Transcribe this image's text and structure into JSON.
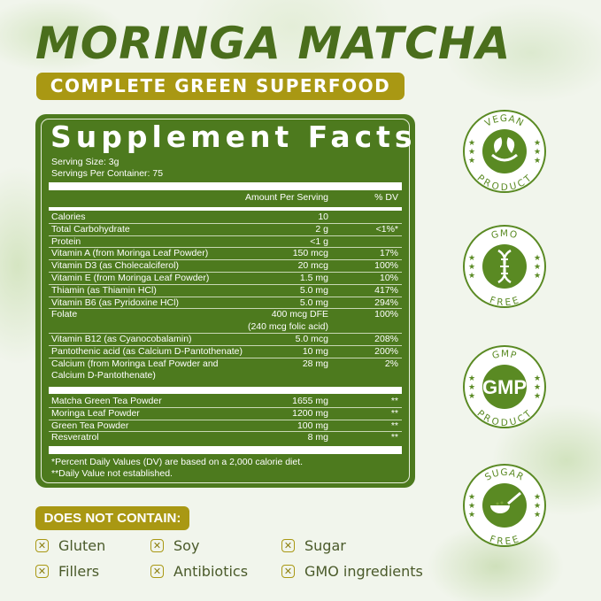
{
  "title": "MORINGA MATCHA",
  "subtitle": "COMPLETE GREEN SUPERFOOD",
  "facts": {
    "heading": "Supplement Facts",
    "serving_size": "Serving Size: 3g",
    "servings_per_container": "Servings Per Container: 75",
    "col_amount": "Amount Per Serving",
    "col_dv": "% DV",
    "nutrients": [
      {
        "name": "Calories",
        "amount": "10",
        "dv": ""
      },
      {
        "name": "Total Carbohydrate",
        "amount": "2 g",
        "dv": "<1%*"
      },
      {
        "name": "Protein",
        "amount": "<1 g",
        "dv": ""
      },
      {
        "name": "Vitamin A (from Moringa Leaf Powder)",
        "amount": "150 mcg",
        "dv": "17%"
      },
      {
        "name": "Vitamin D3 (as Cholecalciferol)",
        "amount": "20 mcg",
        "dv": "100%"
      },
      {
        "name": "Vitamin E (from Moringa Leaf Powder)",
        "amount": "1.5 mg",
        "dv": "10%"
      },
      {
        "name": "Thiamin (as Thiamin HCl)",
        "amount": "5.0 mg",
        "dv": "417%"
      },
      {
        "name": "Vitamin B6 (as Pyridoxine HCl)",
        "amount": "5.0 mg",
        "dv": "294%"
      },
      {
        "name": "Folate",
        "amount": "400 mcg DFE",
        "amount2": "(240 mcg folic acid)",
        "dv": "100%"
      },
      {
        "name": "Vitamin B12 (as Cyanocobalamin)",
        "amount": "5.0 mcg",
        "dv": "208%"
      },
      {
        "name": "Pantothenic acid (as Calcium D-Pantothenate)",
        "amount": "10 mg",
        "dv": "200%"
      },
      {
        "name": "Calcium (from Moringa Leaf Powder and",
        "name2": "Calcium D-Pantothenate)",
        "amount": "28 mg",
        "dv": "2%"
      }
    ],
    "ingredients": [
      {
        "name": "Matcha Green Tea Powder",
        "amount": "1655 mg",
        "dv": "**"
      },
      {
        "name": "Moringa Leaf Powder",
        "amount": "1200 mg",
        "dv": "**"
      },
      {
        "name": "Green Tea Powder",
        "amount": "100 mg",
        "dv": "**"
      },
      {
        "name": "Resveratrol",
        "amount": "8 mg",
        "dv": "**"
      }
    ],
    "footnote1": "*Percent Daily Values (DV) are based on a 2,000 calorie diet.",
    "footnote2": "**Daily Value not established."
  },
  "badges": [
    {
      "top": "VEGAN",
      "bottom": "PRODUCT",
      "icon": "leaf-bowl-icon"
    },
    {
      "top": "GMO",
      "bottom": "FREE",
      "icon": "dna-icon"
    },
    {
      "top": "GMP",
      "bottom": "PRODUCT",
      "icon": "gmp-text-icon",
      "center": "GMP"
    },
    {
      "top": "SUGAR",
      "bottom": "FREE",
      "icon": "spoon-icon"
    }
  ],
  "does_not_contain": {
    "label": "DOES NOT CONTAIN:",
    "items": [
      "Gluten",
      "Soy",
      "Sugar",
      "Fillers",
      "Antibiotics",
      "GMO ingredients"
    ]
  },
  "colors": {
    "primary_green": "#4d7a1e",
    "title_green": "#4a6e1c",
    "gold": "#a99813",
    "badge_green": "#5a8a23"
  }
}
